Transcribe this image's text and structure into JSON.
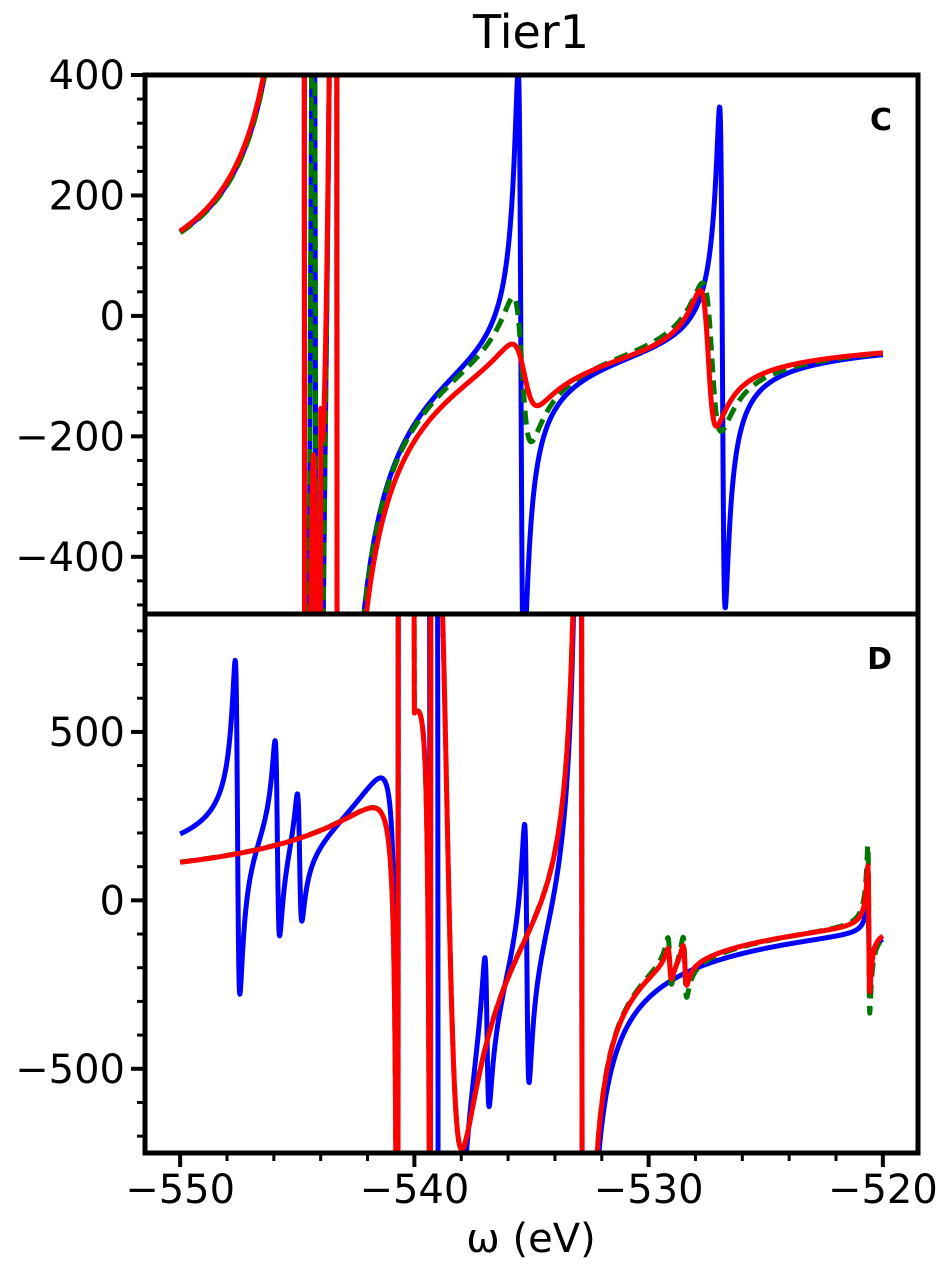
{
  "figure": {
    "title": "Tier1",
    "xlabel": "ω (eV)"
  },
  "colors": {
    "blue": "#0000ff",
    "red": "#ff0000",
    "green": "#007700",
    "axes": "#000000"
  },
  "chart_data": [
    {
      "type": "line",
      "panel_label": "C",
      "title": "Tier1",
      "xlabel": "",
      "ylabel": "",
      "xlim": [
        -551.5,
        -518.5
      ],
      "ylim": [
        -495,
        400
      ],
      "yticks": [
        -400,
        -200,
        0,
        200,
        400
      ],
      "yticklabels": [
        "−400",
        "−200",
        "0",
        "200",
        "400"
      ],
      "grid": false,
      "legend": "none",
      "series": [
        {
          "color": "blue",
          "style": "solid",
          "baseline": {
            "a": -60,
            "ref": -544,
            "bias": -10
          },
          "peaks": [
            {
              "x": -544.2,
              "A": 40,
              "g": 0.12
            },
            {
              "x": -535.45,
              "A": 12,
              "g": 0.12
            },
            {
              "x": -526.85,
              "A": 10,
              "g": 0.12
            }
          ]
        },
        {
          "color": "green",
          "style": "dashed",
          "baseline": {
            "a": -60,
            "ref": -544,
            "bias": -10
          },
          "peaks": [
            {
              "x": -544.2,
              "A": 40,
              "g": 0.12
            },
            {
              "x": -535.4,
              "A": 10,
              "g": 0.4
            },
            {
              "x": -527.3,
              "A": 10,
              "g": 0.4
            }
          ]
        },
        {
          "color": "red",
          "style": "solid",
          "baseline": {
            "a": -60,
            "ref": -544,
            "bias": -12
          },
          "peaks": [
            {
              "x": -544.15,
              "A": 45,
              "g": 0.28
            },
            {
              "x": -535.3,
              "A": 7,
              "g": 0.6
            },
            {
              "x": -527.45,
              "A": 8,
              "g": 0.35
            }
          ]
        }
      ]
    },
    {
      "type": "line",
      "panel_label": "D",
      "title": "",
      "xlabel": "ω (eV)",
      "ylabel": "",
      "xlim": [
        -551.5,
        -518.5
      ],
      "ylim": [
        -750,
        850
      ],
      "xticks": [
        -550,
        -540,
        -530,
        -520
      ],
      "xticklabels": [
        "−550",
        "−540",
        "−530",
        "−520"
      ],
      "yticks": [
        -500,
        0,
        500
      ],
      "yticklabels": [
        "−500",
        "0",
        "500"
      ],
      "grid": false,
      "legend": "none",
      "series": [
        {
          "color": "blue",
          "style": "solid",
          "baseline": {
            "a": 20,
            "ref": -540,
            "bias": 5
          },
          "peaks": [
            {
              "x": -547.55,
              "A": 10,
              "g": 0.1
            },
            {
              "x": -545.85,
              "A": 6,
              "g": 0.1
            },
            {
              "x": -544.9,
              "A": 4,
              "g": 0.1
            },
            {
              "x": -539.0,
              "A": 120,
              "g": 0.08
            },
            {
              "x": -536.9,
              "A": 5,
              "g": 0.1
            },
            {
              "x": -535.2,
              "A": 8,
              "g": 0.1
            },
            {
              "x": -532.85,
              "A": 40,
              "g": 0.05
            },
            {
              "x": -520.6,
              "A": 1,
              "g": 0.05
            }
          ]
        },
        {
          "color": "green",
          "style": "dashed",
          "baseline": {
            "a": 20,
            "ref": -540,
            "bias": 5
          },
          "peaks": [
            {
              "x": -538.6,
              "A": 110,
              "g": 0.6
            },
            {
              "x": -532.85,
              "A": 40,
              "g": 0.05
            },
            {
              "x": -529.1,
              "A": 1.2,
              "g": 0.08
            },
            {
              "x": -528.45,
              "A": 1.5,
              "g": 0.08
            },
            {
              "x": -520.6,
              "A": 2,
              "g": 0.04
            }
          ]
        },
        {
          "color": "red",
          "style": "solid",
          "baseline": {
            "a": 20,
            "ref": -540,
            "bias": 5
          },
          "peaks": [
            {
              "x": -538.6,
              "A": 110,
              "g": 0.6
            },
            {
              "x": -532.85,
              "A": 40,
              "g": 0.05
            },
            {
              "x": -529.1,
              "A": 0.8,
              "g": 0.08
            },
            {
              "x": -528.45,
              "A": 1,
              "g": 0.08
            },
            {
              "x": -520.6,
              "A": 1.5,
              "g": 0.04
            }
          ]
        }
      ]
    }
  ]
}
